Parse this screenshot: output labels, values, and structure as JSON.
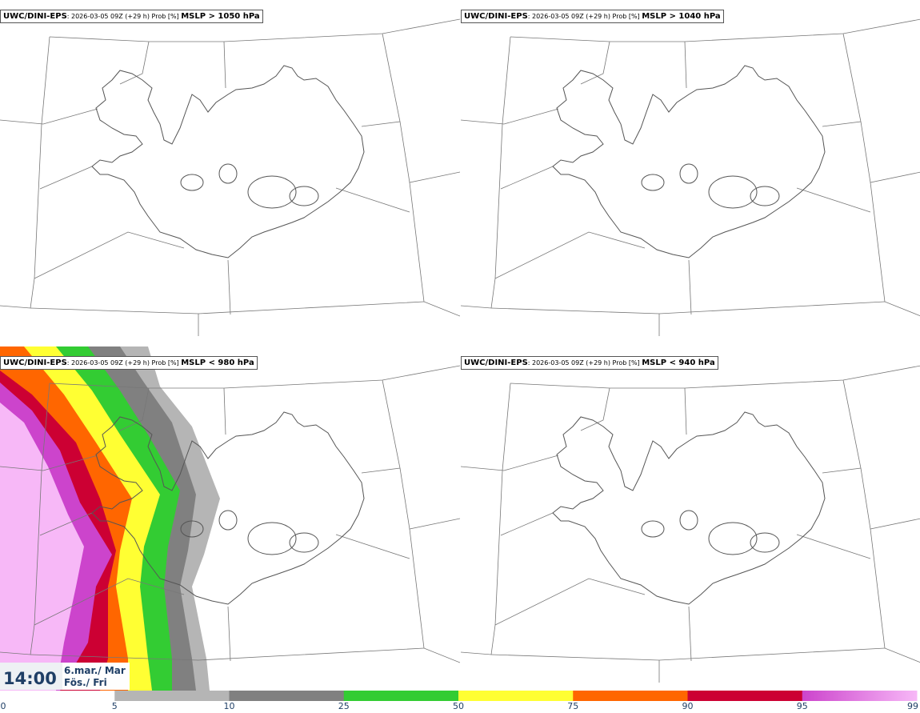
{
  "panels": [
    {
      "source": "UWC/DINI-EPS",
      "info": ": 2026-03-05 09Z (+29 h) Prob [%]",
      "threshold": "MSLP > 1050 hPa"
    },
    {
      "source": "UWC/DINI-EPS",
      "info": ": 2026-03-05 09Z (+29 h) Prob [%]",
      "threshold": "MSLP > 1040 hPa"
    },
    {
      "source": "UWC/DINI-EPS",
      "info": ": 2026-03-05 09Z (+29 h) Prob [%]",
      "threshold": "MSLP < 980 hPa"
    },
    {
      "source": "UWC/DINI-EPS",
      "info": ": 2026-03-05 09Z (+29 h) Prob [%]",
      "threshold": "MSLP < 940 hPa"
    }
  ],
  "valid_time": {
    "time": "14:00",
    "date_is": "6.mar./ Mar",
    "day": "Fös./ Fri"
  },
  "colorbar": {
    "ticks": [
      "0",
      "5",
      "10",
      "25",
      "50",
      "75",
      "90",
      "95",
      "99"
    ],
    "colors": [
      "#ffffff",
      "#b5b5b5",
      "#808080",
      "#33cc33",
      "#ffff33",
      "#ff6600",
      "#cc0033",
      "#cc44cc",
      "#f7b8f7"
    ]
  },
  "map": {
    "coast_color": "#555555",
    "border_color": "#777777"
  }
}
